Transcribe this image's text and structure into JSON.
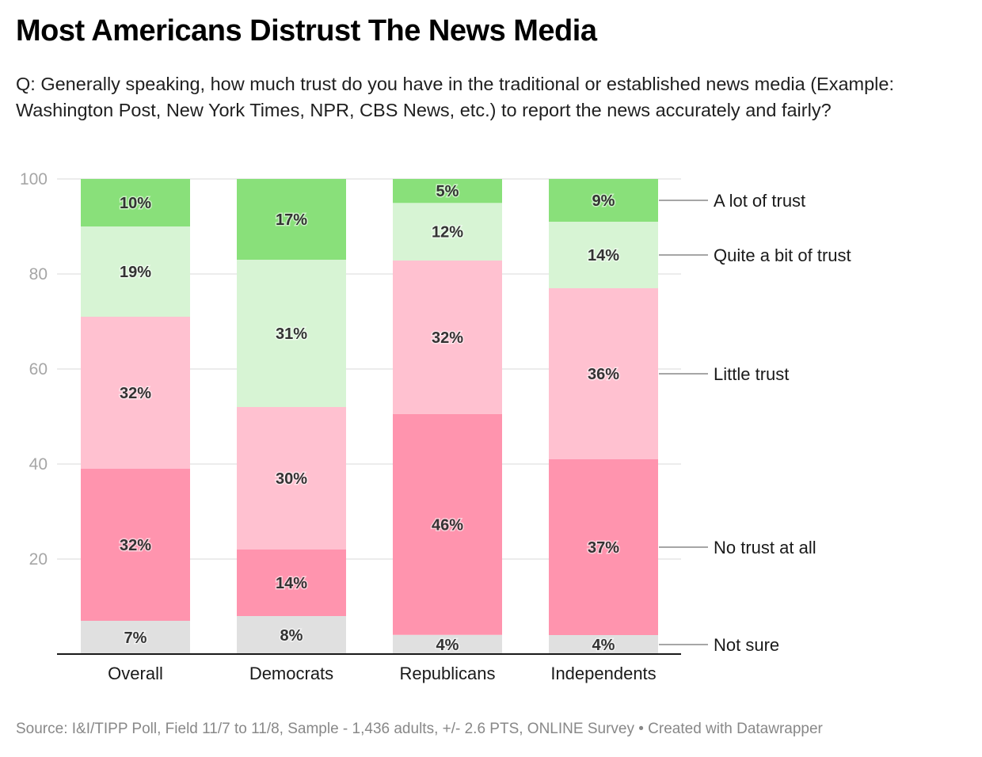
{
  "header": {
    "title": "Most Americans Distrust The News Media",
    "subtitle": "Q: Generally speaking, how much trust do you have in the traditional or established news media (Example: Washington Post, New York Times, NPR, CBS News, etc.) to report the news accurately and fairly?"
  },
  "footer": {
    "text": "Source: I&I/TIPP Poll, Field 11/7 to 11/8, Sample - 1,436 adults, +/- 2.6 PTS, ONLINE Survey • Created with Datawrapper"
  },
  "chart_data": {
    "type": "bar",
    "stacked": true,
    "orientation": "vertical",
    "title": "Most Americans Distrust The News Media",
    "xlabel": "",
    "ylabel": "",
    "ylim": [
      0,
      100
    ],
    "yticks": [
      20,
      40,
      60,
      80,
      100
    ],
    "grid": true,
    "legend_placement": "right (direct labels)",
    "categories": [
      "Overall",
      "Democrats",
      "Republicans",
      "Independents"
    ],
    "series": [
      {
        "name": "Not sure",
        "color": "#e0e0e0",
        "values": [
          7,
          8,
          4,
          4
        ]
      },
      {
        "name": "No trust at all",
        "color": "#ff94ae",
        "values": [
          32,
          14,
          46,
          37
        ]
      },
      {
        "name": "Little trust",
        "color": "#ffc1d0",
        "values": [
          32,
          30,
          32,
          36
        ]
      },
      {
        "name": "Quite a bit of trust",
        "color": "#d7f4d4",
        "values": [
          19,
          31,
          12,
          14
        ]
      },
      {
        "name": "A lot of trust",
        "color": "#89e07a",
        "values": [
          10,
          17,
          5,
          9
        ]
      }
    ],
    "value_suffix": "%"
  }
}
